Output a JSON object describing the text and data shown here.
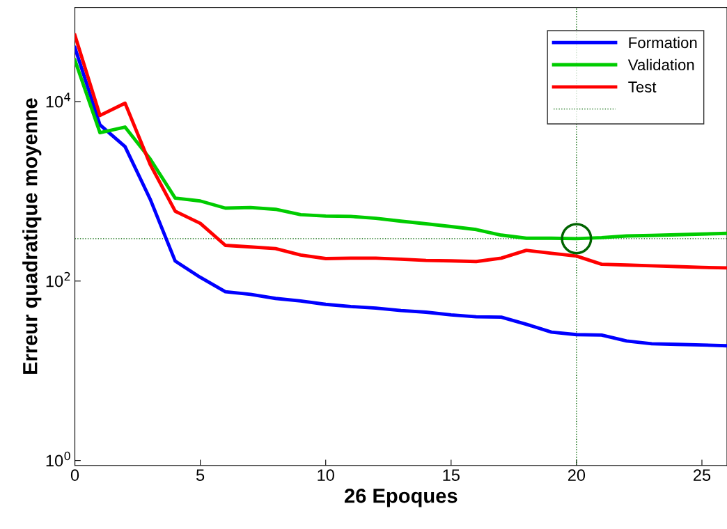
{
  "chart_data": {
    "type": "line",
    "xlabel": "26 Epoques",
    "ylabel": "Erreur quadratique moyenne",
    "log": "y",
    "xlim": [
      0,
      26
    ],
    "ylim": [
      0.88,
      112000
    ],
    "xticks": [
      0,
      5,
      10,
      15,
      20,
      25
    ],
    "yticks": [
      {
        "value": 1,
        "label": "10$^{0}$"
      },
      {
        "value": 100,
        "label": "10$^{2}$"
      },
      {
        "value": 10000,
        "label": "10$^{4}$"
      }
    ],
    "grid": false,
    "legend": "top right",
    "line_style": "solid",
    "marker": "none",
    "x": [
      0,
      1,
      2,
      3,
      4,
      5,
      6,
      7,
      8,
      9,
      10,
      11,
      12,
      13,
      14,
      15,
      16,
      17,
      18,
      19,
      20,
      21,
      22,
      23,
      24,
      25,
      26
    ],
    "series": [
      {
        "name": "Formation",
        "color": "#0000ff",
        "values": [
          40000,
          5500,
          3150,
          820,
          167,
          110,
          76,
          71,
          64,
          60,
          55,
          52,
          50,
          47,
          45,
          42,
          40,
          39.6,
          33,
          27,
          25.3,
          25,
          21.5,
          20,
          19.7,
          19.4,
          19
        ]
      },
      {
        "name": "Validation",
        "color": "#00cc00",
        "values": [
          29000,
          4500,
          5200,
          2300,
          840,
          780,
          650,
          660,
          630,
          550,
          530,
          525,
          500,
          465,
          435,
          405,
          375,
          325,
          300,
          300,
          297,
          305,
          318,
          322,
          328,
          334,
          340
        ]
      },
      {
        "name": "Test",
        "color": "#ff0000",
        "values": [
          55000,
          7000,
          9600,
          2000,
          600,
          440,
          250,
          240,
          230,
          195,
          178,
          180,
          180,
          175,
          170,
          168,
          165,
          180,
          220,
          204,
          190,
          154,
          151,
          148,
          145,
          142,
          140
        ]
      },
      {
        "type": "scatter",
        "color": "#006400",
        "marker": "circle",
        "x": [
          20
        ],
        "values": [
          297
        ]
      }
    ],
    "ref_lines": [
      {
        "axis": "x",
        "value": 20,
        "color": "#006400",
        "line_style": "dotted"
      },
      {
        "axis": "y",
        "value": 297,
        "color": "#006400",
        "line_style": "dotted"
      }
    ]
  }
}
